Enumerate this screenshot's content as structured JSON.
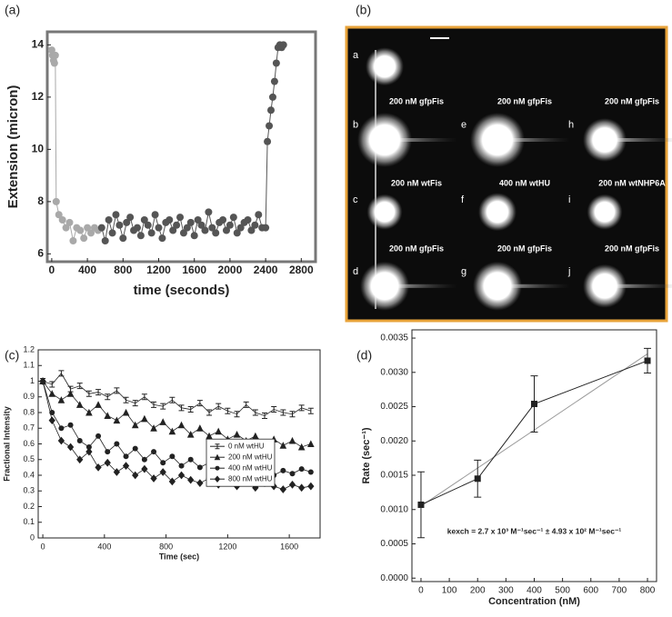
{
  "chart_data": [
    {
      "type": "scatter",
      "panel": "(a)",
      "x_label": "time (seconds)",
      "y_label": "Extension (micron)",
      "xlim": [
        -50,
        2960
      ],
      "ylim": [
        5.7,
        14.5
      ],
      "xticks": [
        0,
        400,
        800,
        1200,
        1600,
        2000,
        2400,
        2800
      ],
      "yticks": [
        6,
        8,
        10,
        12,
        14
      ],
      "connect": true,
      "series": [
        {
          "color": "#a9a9a9",
          "marker": "circle",
          "x": [
            0,
            10,
            20,
            30,
            40,
            50,
            80,
            120,
            160,
            200,
            240,
            280,
            320,
            360,
            400,
            440,
            480,
            520
          ],
          "values": [
            13.8,
            13.6,
            13.4,
            13.3,
            13.6,
            8.0,
            7.5,
            7.3,
            7.0,
            7.2,
            6.5,
            7.0,
            6.9,
            6.6,
            7.0,
            6.8,
            7.0,
            6.9
          ]
        },
        {
          "color": "#555555",
          "marker": "circle",
          "x": [
            560,
            600,
            640,
            680,
            720,
            760,
            800,
            840,
            880,
            920,
            960,
            1000,
            1040,
            1080,
            1120,
            1160,
            1200,
            1240,
            1280,
            1320,
            1360,
            1400,
            1440,
            1480,
            1520,
            1560,
            1600,
            1640,
            1680,
            1720,
            1760,
            1800,
            1840,
            1880,
            1920,
            1960,
            2000,
            2040,
            2080,
            2120,
            2160,
            2200,
            2240,
            2280,
            2320,
            2360,
            2400,
            2420,
            2440,
            2460,
            2480,
            2500,
            2520,
            2540,
            2560,
            2580,
            2600
          ],
          "values": [
            7.0,
            6.5,
            7.3,
            6.8,
            7.5,
            7.1,
            6.6,
            7.2,
            7.4,
            6.9,
            7.0,
            6.7,
            7.3,
            7.1,
            6.8,
            7.5,
            7.0,
            6.6,
            7.2,
            7.3,
            6.9,
            7.1,
            7.4,
            6.8,
            7.0,
            7.2,
            6.7,
            7.3,
            7.1,
            6.9,
            7.6,
            7.0,
            6.8,
            7.2,
            7.3,
            6.9,
            7.1,
            7.4,
            6.8,
            7.0,
            7.2,
            7.3,
            6.9,
            7.1,
            7.5,
            7.0,
            7.0,
            10.3,
            10.9,
            11.5,
            12.0,
            12.6,
            13.3,
            13.9,
            14.0,
            13.9,
            14.0
          ]
        }
      ]
    },
    {
      "type": "line",
      "panel": "(c)",
      "x_label": "Time (sec)",
      "y_label": "Fractional Intensity",
      "xlim": [
        -30,
        1800
      ],
      "ylim": [
        0,
        1.2
      ],
      "xticks": [
        0,
        400,
        800,
        1200,
        1600
      ],
      "yticks": [
        0,
        0.1,
        0.2,
        0.3,
        0.4,
        0.5,
        0.6,
        0.7,
        0.8,
        0.9,
        1,
        1.1,
        1.2
      ],
      "legend": "center right",
      "x": [
        0,
        60,
        120,
        180,
        240,
        300,
        360,
        420,
        480,
        540,
        600,
        660,
        720,
        780,
        840,
        900,
        960,
        1020,
        1080,
        1140,
        1200,
        1260,
        1320,
        1380,
        1440,
        1500,
        1560,
        1620,
        1680,
        1740
      ],
      "series": [
        {
          "name": "0 nM wtHU",
          "color": "#222222",
          "marker": "ibar",
          "values": [
            1.0,
            0.98,
            1.05,
            0.95,
            0.97,
            0.92,
            0.93,
            0.9,
            0.94,
            0.88,
            0.86,
            0.9,
            0.85,
            0.84,
            0.88,
            0.83,
            0.82,
            0.86,
            0.8,
            0.84,
            0.81,
            0.79,
            0.85,
            0.8,
            0.78,
            0.82,
            0.8,
            0.79,
            0.83,
            0.81
          ]
        },
        {
          "name": "200 nM wtHU",
          "color": "#222222",
          "marker": "triangle",
          "values": [
            1.0,
            0.92,
            0.88,
            0.92,
            0.85,
            0.8,
            0.85,
            0.78,
            0.75,
            0.8,
            0.72,
            0.76,
            0.7,
            0.74,
            0.68,
            0.72,
            0.66,
            0.7,
            0.65,
            0.68,
            0.63,
            0.66,
            0.62,
            0.65,
            0.6,
            0.63,
            0.59,
            0.62,
            0.58,
            0.6
          ]
        },
        {
          "name": "400 nM wtHU",
          "color": "#222222",
          "marker": "circle",
          "values": [
            1.0,
            0.8,
            0.7,
            0.72,
            0.62,
            0.58,
            0.65,
            0.55,
            0.6,
            0.52,
            0.57,
            0.5,
            0.55,
            0.48,
            0.52,
            0.46,
            0.5,
            0.45,
            0.48,
            0.42,
            0.47,
            0.44,
            0.4,
            0.45,
            0.42,
            0.4,
            0.43,
            0.41,
            0.44,
            0.42
          ]
        },
        {
          "name": "800 nM wtHU",
          "color": "#222222",
          "marker": "diamond",
          "values": [
            1.0,
            0.75,
            0.62,
            0.58,
            0.5,
            0.55,
            0.45,
            0.48,
            0.42,
            0.46,
            0.4,
            0.44,
            0.38,
            0.42,
            0.36,
            0.4,
            0.37,
            0.35,
            0.38,
            0.34,
            0.37,
            0.33,
            0.36,
            0.32,
            0.35,
            0.33,
            0.31,
            0.34,
            0.32,
            0.33
          ]
        }
      ]
    },
    {
      "type": "errorbar",
      "panel": "(d)",
      "x_label": "Concentration (nM)",
      "y_label": "Rate (sec⁻¹)",
      "annotation": "kexch = 2.7 x 10³ M⁻¹sec⁻¹ ± 4.93 x 10² M⁻¹sec⁻¹",
      "xlim": [
        -32,
        832
      ],
      "ylim": [
        -5e-05,
        0.00362
      ],
      "xticks": [
        0,
        100,
        200,
        300,
        400,
        500,
        600,
        700,
        800
      ],
      "yticks": [
        {
          "value": 0,
          "label": "0.0000"
        },
        {
          "value": 0.0005,
          "label": "0.0005"
        },
        {
          "value": 0.001,
          "label": "0.0010"
        },
        {
          "value": 0.0015,
          "label": "0.0015"
        },
        {
          "value": 0.002,
          "label": "0.0020"
        },
        {
          "value": 0.0025,
          "label": "0.0025"
        },
        {
          "value": 0.003,
          "label": "0.0030"
        },
        {
          "value": 0.0035,
          "label": "0.0035"
        }
      ],
      "color": "#222222",
      "marker": "square",
      "x": [
        0,
        200,
        400,
        800
      ],
      "values": [
        0.00107,
        0.00145,
        0.00254,
        0.00317
      ],
      "errors": [
        0.00048,
        0.00027,
        0.00041,
        0.00018
      ],
      "fit": {
        "color": "#999999",
        "x": [
          0,
          800
        ],
        "values": [
          0.00105,
          0.00327
        ]
      }
    }
  ],
  "micrograph": {
    "panel": "(b)",
    "tiles": [
      {
        "letter": "a"
      },
      {
        "letter": "b",
        "caption": "200 nM gfpFis"
      },
      {
        "letter": "c",
        "caption": "200 nM wtFis"
      },
      {
        "letter": "d",
        "caption": "200 nM gfpFis"
      },
      {
        "letter": "e",
        "caption": "200 nM gfpFis"
      },
      {
        "letter": "f",
        "caption": "400 nM wtHU"
      },
      {
        "letter": "g",
        "caption": "200 nM gfpFis"
      },
      {
        "letter": "h",
        "caption": "200 nM gfpFis"
      },
      {
        "letter": "i",
        "caption": "200 nM wtNHP6A"
      },
      {
        "letter": "j",
        "caption": "200 nM gfpFis"
      }
    ]
  }
}
